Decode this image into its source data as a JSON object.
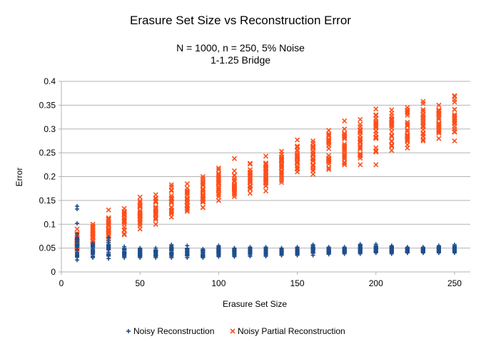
{
  "chart_data": {
    "type": "scatter",
    "title": "Erasure Set Size vs Reconstruction Error",
    "subtitle_lines": [
      "N = 1000, n = 250, 5% Noise",
      "1-1.25 Bridge"
    ],
    "xlabel": "Erasure Set Size",
    "ylabel": "Error",
    "xlim": [
      0,
      260
    ],
    "ylim": [
      0,
      0.4
    ],
    "x_ticks": [
      0,
      50,
      100,
      150,
      200,
      250
    ],
    "x_tick_labels": [
      "0",
      "50",
      "100",
      "150",
      "200",
      "250"
    ],
    "y_ticks": [
      0,
      0.05,
      0.1,
      0.15,
      0.2,
      0.25,
      0.3,
      0.35,
      0.4
    ],
    "y_tick_labels": [
      "0",
      "0.05",
      "0.1",
      "0.15",
      "0.2",
      "0.25",
      "0.3",
      "0.35",
      "0.4"
    ],
    "grid": "horizontal",
    "legend_position": "bottom",
    "series": [
      {
        "name": "Noisy Reconstruction",
        "color": "#1f4e8c",
        "marker": "plus",
        "groups": [
          {
            "x": 10,
            "min": 0.025,
            "max": 0.08,
            "outliers": [
              0.102,
              0.132,
              0.138
            ]
          },
          {
            "x": 20,
            "min": 0.03,
            "max": 0.06,
            "outliers": []
          },
          {
            "x": 30,
            "min": 0.028,
            "max": 0.065,
            "outliers": [
              0.072
            ]
          },
          {
            "x": 40,
            "min": 0.03,
            "max": 0.053,
            "outliers": []
          },
          {
            "x": 50,
            "min": 0.03,
            "max": 0.05,
            "outliers": []
          },
          {
            "x": 60,
            "min": 0.03,
            "max": 0.05,
            "outliers": []
          },
          {
            "x": 70,
            "min": 0.03,
            "max": 0.057,
            "outliers": []
          },
          {
            "x": 80,
            "min": 0.03,
            "max": 0.055,
            "outliers": []
          },
          {
            "x": 90,
            "min": 0.03,
            "max": 0.048,
            "outliers": []
          },
          {
            "x": 100,
            "min": 0.032,
            "max": 0.055,
            "outliers": []
          },
          {
            "x": 110,
            "min": 0.032,
            "max": 0.05,
            "outliers": []
          },
          {
            "x": 120,
            "min": 0.033,
            "max": 0.052,
            "outliers": []
          },
          {
            "x": 130,
            "min": 0.033,
            "max": 0.052,
            "outliers": []
          },
          {
            "x": 140,
            "min": 0.035,
            "max": 0.05,
            "outliers": []
          },
          {
            "x": 150,
            "min": 0.035,
            "max": 0.052,
            "outliers": []
          },
          {
            "x": 160,
            "min": 0.035,
            "max": 0.057,
            "outliers": []
          },
          {
            "x": 170,
            "min": 0.037,
            "max": 0.052,
            "outliers": []
          },
          {
            "x": 180,
            "min": 0.038,
            "max": 0.052,
            "outliers": []
          },
          {
            "x": 190,
            "min": 0.038,
            "max": 0.058,
            "outliers": []
          },
          {
            "x": 200,
            "min": 0.04,
            "max": 0.058,
            "outliers": []
          },
          {
            "x": 210,
            "min": 0.038,
            "max": 0.055,
            "outliers": []
          },
          {
            "x": 220,
            "min": 0.04,
            "max": 0.052,
            "outliers": []
          },
          {
            "x": 230,
            "min": 0.04,
            "max": 0.052,
            "outliers": []
          },
          {
            "x": 240,
            "min": 0.04,
            "max": 0.055,
            "outliers": []
          },
          {
            "x": 250,
            "min": 0.04,
            "max": 0.057,
            "outliers": []
          }
        ]
      },
      {
        "name": "Noisy Partial Reconstruction",
        "color": "#ff4f1a",
        "marker": "x",
        "groups": [
          {
            "x": 10,
            "min": 0.045,
            "max": 0.08,
            "outliers": [
              0.09
            ]
          },
          {
            "x": 20,
            "min": 0.06,
            "max": 0.1,
            "outliers": []
          },
          {
            "x": 30,
            "min": 0.07,
            "max": 0.13,
            "outliers": []
          },
          {
            "x": 40,
            "min": 0.08,
            "max": 0.133,
            "outliers": [
              0.078
            ]
          },
          {
            "x": 50,
            "min": 0.09,
            "max": 0.157,
            "outliers": []
          },
          {
            "x": 60,
            "min": 0.1,
            "max": 0.162,
            "outliers": []
          },
          {
            "x": 70,
            "min": 0.115,
            "max": 0.183,
            "outliers": []
          },
          {
            "x": 80,
            "min": 0.127,
            "max": 0.185,
            "outliers": []
          },
          {
            "x": 90,
            "min": 0.135,
            "max": 0.2,
            "outliers": []
          },
          {
            "x": 100,
            "min": 0.15,
            "max": 0.218,
            "outliers": []
          },
          {
            "x": 110,
            "min": 0.158,
            "max": 0.212,
            "outliers": [
              0.238
            ]
          },
          {
            "x": 120,
            "min": 0.165,
            "max": 0.228,
            "outliers": []
          },
          {
            "x": 130,
            "min": 0.17,
            "max": 0.243,
            "outliers": []
          },
          {
            "x": 140,
            "min": 0.188,
            "max": 0.253,
            "outliers": []
          },
          {
            "x": 150,
            "min": 0.21,
            "max": 0.277,
            "outliers": []
          },
          {
            "x": 160,
            "min": 0.205,
            "max": 0.275,
            "outliers": []
          },
          {
            "x": 170,
            "min": 0.215,
            "max": 0.297,
            "outliers": []
          },
          {
            "x": 180,
            "min": 0.225,
            "max": 0.3,
            "outliers": [
              0.317
            ]
          },
          {
            "x": 190,
            "min": 0.225,
            "max": 0.32,
            "outliers": []
          },
          {
            "x": 200,
            "min": 0.225,
            "max": 0.342,
            "outliers": []
          },
          {
            "x": 210,
            "min": 0.255,
            "max": 0.34,
            "outliers": []
          },
          {
            "x": 220,
            "min": 0.26,
            "max": 0.345,
            "outliers": []
          },
          {
            "x": 230,
            "min": 0.275,
            "max": 0.358,
            "outliers": []
          },
          {
            "x": 240,
            "min": 0.28,
            "max": 0.35,
            "outliers": []
          },
          {
            "x": 250,
            "min": 0.275,
            "max": 0.37,
            "outliers": []
          }
        ]
      }
    ]
  }
}
